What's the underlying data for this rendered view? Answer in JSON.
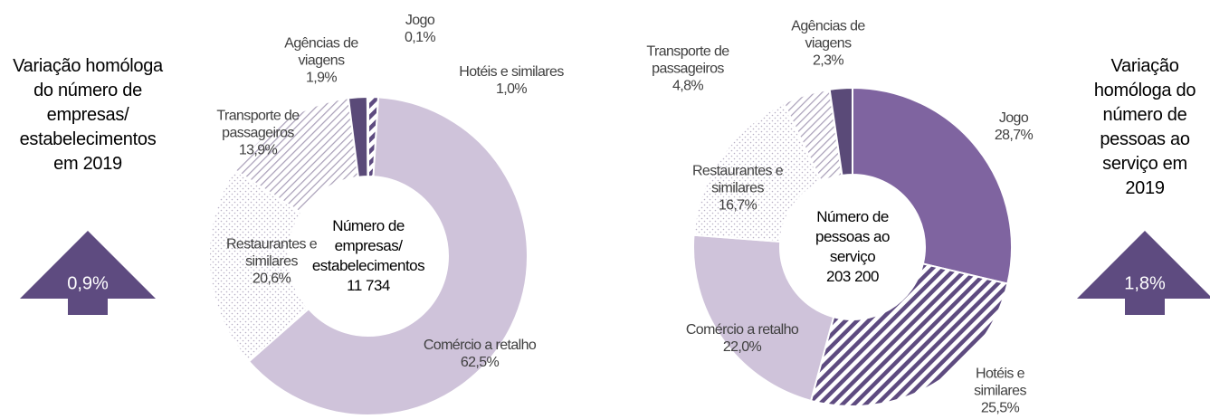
{
  "chart_data": [
    {
      "type": "pie",
      "center_title": "Número de empresas/ estabelecimentos",
      "center_value": "11 734",
      "categories": [
        "Hotéis e similares",
        "Comércio a retalho",
        "Restaurantes e similares",
        "Transporte de passageiros",
        "Agências de viagens",
        "Jogo"
      ],
      "values": [
        1.0,
        62.5,
        20.6,
        13.9,
        1.9,
        0.1
      ],
      "value_labels": [
        "1,0%",
        "62,5%",
        "20,6%",
        "13,9%",
        "1,9%",
        "0,1%"
      ],
      "colors": [
        "#5e4b80",
        "#cfc3da",
        "#b8b0c4",
        "#a99fb8",
        "#5a4a78",
        "#7f64a0"
      ],
      "patterns": [
        "stripes",
        "solid",
        "dots",
        "lines",
        "solid",
        "solid"
      ],
      "side_note": "Variação homóloga do número de empresas/ estabelecimentos em 2019",
      "change_label": "0,9%"
    },
    {
      "type": "pie",
      "center_title": "Número de pessoas ao serviço",
      "center_value": "203 200",
      "categories": [
        "Jogo",
        "Hotéis e similares",
        "Comércio a retalho",
        "Restaurantes e similares",
        "Transporte de passageiros",
        "Agências de viagens"
      ],
      "values": [
        28.7,
        25.5,
        22.0,
        16.7,
        4.8,
        2.3
      ],
      "value_labels": [
        "28,7%",
        "25,5%",
        "22,0%",
        "16,7%",
        "4,8%",
        "2,3%"
      ],
      "colors": [
        "#7f64a0",
        "#5e4b80",
        "#cfc3da",
        "#b8b0c4",
        "#a99fb8",
        "#5a4a78"
      ],
      "patterns": [
        "solid",
        "stripes",
        "solid",
        "dots",
        "lines",
        "solid"
      ],
      "side_note": "Variação homóloga do número de pessoas ao serviço em 2019",
      "change_label": "1,8%"
    }
  ]
}
